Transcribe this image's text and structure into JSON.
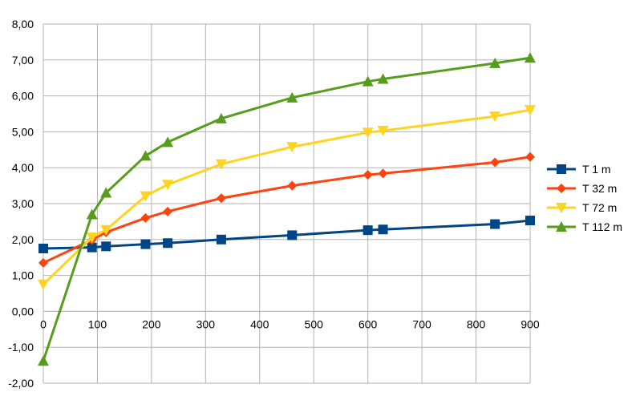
{
  "chart_data": {
    "type": "line",
    "title": "",
    "xlabel": "",
    "ylabel": "",
    "xlim": [
      0,
      900
    ],
    "ylim": [
      -2,
      8
    ],
    "x_ticks": [
      {
        "value": 0,
        "label": "0"
      },
      {
        "value": 100,
        "label": "100"
      },
      {
        "value": 200,
        "label": "200"
      },
      {
        "value": 300,
        "label": "300"
      },
      {
        "value": 400,
        "label": "400"
      },
      {
        "value": 500,
        "label": "500"
      },
      {
        "value": 600,
        "label": "600"
      },
      {
        "value": 700,
        "label": "700"
      },
      {
        "value": 800,
        "label": "800"
      },
      {
        "value": 900,
        "label": "900"
      }
    ],
    "y_ticks": [
      {
        "value": 8,
        "label": "8,00"
      },
      {
        "value": 7,
        "label": "7,00"
      },
      {
        "value": 6,
        "label": "6,00"
      },
      {
        "value": 5,
        "label": "5,00"
      },
      {
        "value": 4,
        "label": "4,00"
      },
      {
        "value": 3,
        "label": "3,00"
      },
      {
        "value": 2,
        "label": "2,00"
      },
      {
        "value": 1,
        "label": "1,00"
      },
      {
        "value": 0,
        "label": "0,00"
      },
      {
        "value": -1,
        "label": "-1,00"
      },
      {
        "value": -2,
        "label": "-2,00"
      }
    ],
    "grid": true,
    "legend": "right",
    "x": [
      0,
      90,
      116,
      189,
      230,
      329,
      460,
      600,
      628,
      835,
      900
    ],
    "series": [
      {
        "name": "T  1 m",
        "color": "#004586",
        "marker": "square",
        "values": [
          1.75,
          1.78,
          1.81,
          1.87,
          1.9,
          2.0,
          2.12,
          2.26,
          2.28,
          2.43,
          2.53
        ]
      },
      {
        "name": "T  32 m",
        "color": "#ff420e",
        "marker": "diamond",
        "values": [
          1.35,
          1.99,
          2.2,
          2.6,
          2.78,
          3.15,
          3.5,
          3.8,
          3.84,
          4.15,
          4.3
        ]
      },
      {
        "name": "T  72 m",
        "color": "#ffd320",
        "marker": "triangle-down",
        "values": [
          0.75,
          2.06,
          2.27,
          3.21,
          3.53,
          4.1,
          4.58,
          4.98,
          5.03,
          5.43,
          5.61
        ]
      },
      {
        "name": "T  112 m",
        "color": "#579d1c",
        "marker": "triangle-up",
        "values": [
          -1.38,
          2.7,
          3.3,
          4.33,
          4.71,
          5.37,
          5.95,
          6.4,
          6.47,
          6.91,
          7.06
        ]
      }
    ]
  }
}
